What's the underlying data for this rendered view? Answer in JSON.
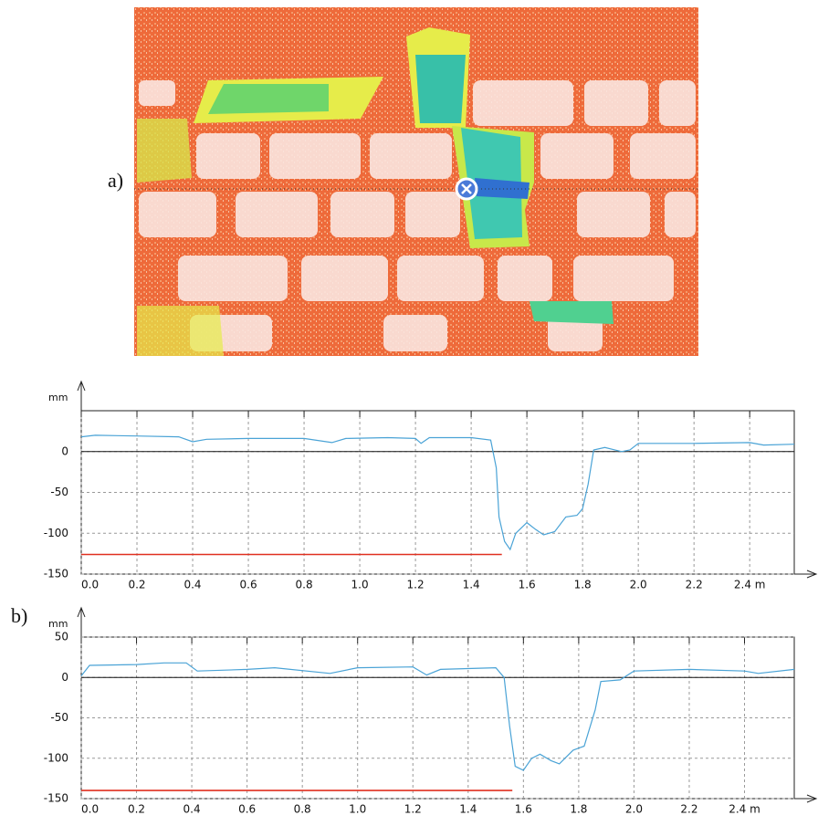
{
  "labels": {
    "a": "a)",
    "b": "b)"
  },
  "chart_data": [
    {
      "type": "line",
      "y_label": "mm",
      "xlim": [
        0,
        2.56
      ],
      "ylim": [
        -150,
        50
      ],
      "xticks": [
        {
          "value": 0,
          "label": "0.0"
        },
        0.2,
        0.4,
        0.6,
        0.8,
        {
          "value": 1,
          "label": "1.0"
        },
        1.2,
        1.4,
        1.6,
        1.8,
        {
          "value": 2,
          "label": "2.0"
        },
        2.2,
        {
          "value": 2.4,
          "label": "2.4 m"
        }
      ],
      "yticks": [
        -150,
        -100,
        -50,
        0
      ],
      "grid": true,
      "series": [
        {
          "color": "#4aa3d6",
          "x": [
            0,
            0.05,
            0.2,
            0.35,
            0.4,
            0.45,
            0.6,
            0.8,
            0.9,
            0.95,
            1.1,
            1.2,
            1.22,
            1.25,
            1.4,
            1.47,
            1.49,
            1.5,
            1.52,
            1.54,
            1.56,
            1.6,
            1.63,
            1.66,
            1.7,
            1.74,
            1.78,
            1.8,
            1.82,
            1.84,
            1.88,
            1.94,
            1.97,
            2.0,
            2.2,
            2.4,
            2.45,
            2.56
          ],
          "values": [
            18,
            20,
            19,
            18,
            12,
            15,
            16,
            16,
            11,
            16,
            17,
            16,
            10,
            17,
            17,
            14,
            -20,
            -80,
            -110,
            -120,
            -100,
            -87,
            -95,
            -102,
            -98,
            -80,
            -78,
            -70,
            -40,
            2,
            5,
            0,
            2,
            10,
            10,
            11,
            8,
            9
          ]
        },
        {
          "color": "#e03020",
          "x": [
            0,
            1.51
          ],
          "values": [
            -126,
            -126
          ]
        }
      ]
    },
    {
      "type": "line",
      "y_label": "mm",
      "xlim": [
        0,
        2.58
      ],
      "ylim": [
        -150,
        50
      ],
      "xticks": [
        {
          "value": 0,
          "label": "0.0"
        },
        0.2,
        0.4,
        0.6,
        0.8,
        {
          "value": 1,
          "label": "1.0"
        },
        1.2,
        1.4,
        1.6,
        1.8,
        {
          "value": 2,
          "label": "2.0"
        },
        2.2,
        {
          "value": 2.4,
          "label": "2.4 m"
        }
      ],
      "yticks": [
        -150,
        -100,
        -50,
        0,
        50
      ],
      "grid": true,
      "series": [
        {
          "color": "#4aa3d6",
          "x": [
            0,
            0.03,
            0.2,
            0.3,
            0.38,
            0.42,
            0.6,
            0.7,
            0.9,
            1.0,
            1.2,
            1.25,
            1.3,
            1.5,
            1.53,
            1.55,
            1.57,
            1.6,
            1.63,
            1.66,
            1.7,
            1.73,
            1.78,
            1.82,
            1.86,
            1.88,
            1.95,
            2.0,
            2.2,
            2.4,
            2.45,
            2.58
          ],
          "values": [
            2,
            15,
            16,
            18,
            18,
            8,
            10,
            12,
            5,
            12,
            13,
            3,
            10,
            12,
            0,
            -60,
            -110,
            -115,
            -100,
            -95,
            -103,
            -107,
            -90,
            -85,
            -40,
            -5,
            -3,
            8,
            10,
            8,
            5,
            10
          ]
        },
        {
          "color": "#e03020",
          "x": [
            0,
            1.56
          ],
          "values": [
            -140,
            -140
          ]
        }
      ]
    }
  ]
}
